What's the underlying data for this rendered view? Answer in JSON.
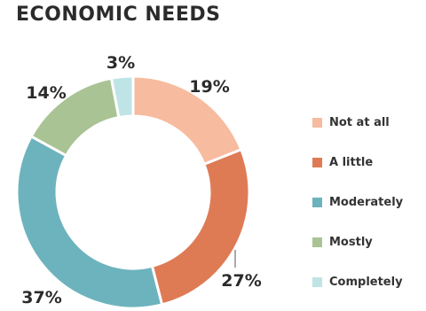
{
  "title": "ECONOMIC NEEDS",
  "chart_data": {
    "type": "pie",
    "variant": "donut",
    "title": "ECONOMIC NEEDS",
    "categories": [
      "Not at all",
      "A little",
      "Moderately",
      "Mostly",
      "Completely"
    ],
    "values": [
      19,
      27,
      37,
      14,
      3
    ],
    "value_labels": [
      "19%",
      "27%",
      "37%",
      "14%",
      "3%"
    ],
    "colors": [
      "#f7bb9f",
      "#de7b55",
      "#6db3bd",
      "#a9c394",
      "#bfe4e6"
    ],
    "legend_position": "right"
  }
}
